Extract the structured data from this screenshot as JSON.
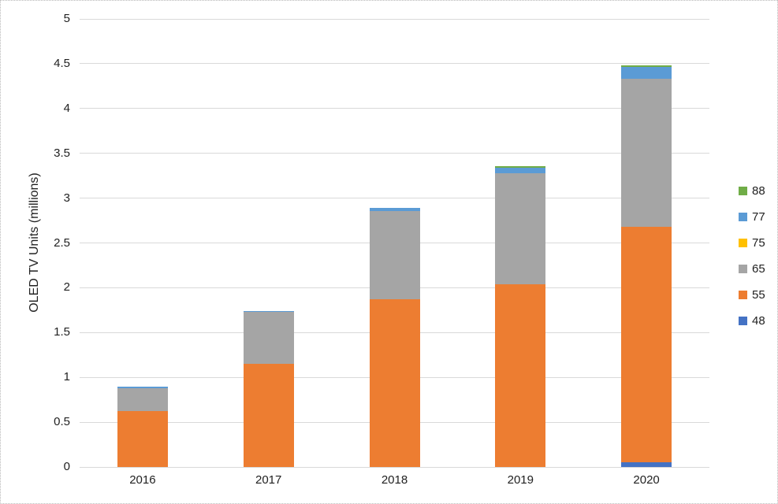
{
  "chart_data": {
    "type": "bar",
    "stacked": true,
    "title": "",
    "xlabel": "",
    "ylabel": "OLED TV Units (millions)",
    "ylim": [
      0,
      5
    ],
    "ytick_step": 0.5,
    "ytick_labels": [
      "0",
      "0.5",
      "1",
      "1.5",
      "2",
      "2.5",
      "3",
      "3.5",
      "4",
      "4.5",
      "5"
    ],
    "categories": [
      "2016",
      "2017",
      "2018",
      "2019",
      "2020"
    ],
    "series": [
      {
        "name": "48",
        "color": "#4472c4",
        "values": [
          0,
          0,
          0,
          0,
          0.05
        ]
      },
      {
        "name": "55",
        "color": "#ed7d31",
        "values": [
          0.62,
          1.15,
          1.87,
          2.04,
          2.63
        ]
      },
      {
        "name": "65",
        "color": "#a5a5a5",
        "values": [
          0.26,
          0.58,
          0.99,
          1.24,
          1.65
        ]
      },
      {
        "name": "75",
        "color": "#ffc000",
        "values": [
          0,
          0,
          0,
          0,
          0
        ]
      },
      {
        "name": "77",
        "color": "#5b9bd5",
        "values": [
          0.02,
          0.01,
          0.03,
          0.06,
          0.13
        ]
      },
      {
        "name": "88",
        "color": "#70ad47",
        "values": [
          0,
          0,
          0,
          0.02,
          0.02
        ]
      }
    ],
    "totals_by_year": [
      0.9,
      1.74,
      2.89,
      3.36,
      4.48
    ],
    "legend": {
      "position": "right",
      "order_top_to_bottom": [
        "88",
        "77",
        "75",
        "65",
        "55",
        "48"
      ]
    },
    "grid": true,
    "gridline_color": "#d9d9d9",
    "background_color": "#ffffff",
    "text_color": "#212121"
  }
}
